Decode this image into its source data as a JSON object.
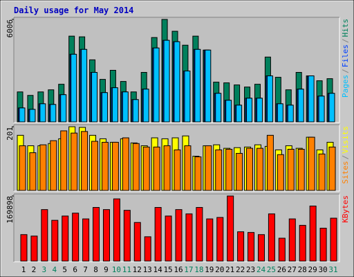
{
  "chart_data": [
    {
      "type": "bar",
      "title": "Daily usage for May 2014",
      "title_color": "#0000c0",
      "legend_separator": "/",
      "ylim": [
        0,
        6006
      ],
      "yticks": [
        6006
      ],
      "series": [
        {
          "name": "Hits",
          "color": "#00805c",
          "values": [
            1757,
            1553,
            1757,
            1880,
            2206,
            5026,
            4985,
            3637,
            2492,
            3024,
            2370,
            1757,
            2901,
            4944,
            6006,
            5312,
            4495,
            5026,
            4209,
            2329,
            2288,
            2166,
            2043,
            2206,
            3800,
            2615,
            1880,
            2901,
            2697,
            2411,
            2533
          ]
        },
        {
          "name": "Files",
          "color": "#0040ff",
          "values": [
            817,
            735,
            1062,
            1021,
            1594,
            3963,
            4249,
            2901,
            1716,
            2002,
            1757,
            1307,
            1920,
            4331,
            4781,
            4699,
            2983,
            4249,
            4209,
            1675,
            1267,
            981,
            1389,
            1389,
            2697,
            1062,
            981,
            1920,
            2697,
            1512,
            1675
          ]
        },
        {
          "name": "Pages",
          "color": "#00c0ff",
          "values": [
            817,
            735,
            1062,
            1021,
            1594,
            3963,
            4249,
            2901,
            1716,
            2002,
            1757,
            1307,
            1920,
            4331,
            4781,
            4699,
            2983,
            4249,
            4209,
            1675,
            1267,
            981,
            1389,
            1389,
            2697,
            1062,
            981,
            1920,
            2697,
            1512,
            1675
          ]
        }
      ]
    },
    {
      "type": "bar",
      "ylim": [
        0,
        201
      ],
      "yticks": [
        201
      ],
      "series": [
        {
          "name": "Visits",
          "color": "#ffff00",
          "values": [
            174,
            141,
            141,
            148,
            163,
            201,
            199,
            174,
            163,
            152,
            163,
            150,
            141,
            166,
            163,
            166,
            172,
            108,
            141,
            144,
            133,
            135,
            137,
            144,
            139,
            128,
            141,
            133,
            168,
            128,
            152
          ]
        },
        {
          "name": "Sites",
          "color": "#ff8000",
          "values": [
            141,
            119,
            144,
            157,
            188,
            181,
            186,
            155,
            152,
            152,
            166,
            148,
            137,
            137,
            141,
            128,
            141,
            106,
            141,
            128,
            130,
            117,
            133,
            133,
            174,
            113,
            130,
            130,
            168,
            115,
            137
          ]
        }
      ]
    },
    {
      "type": "bar",
      "ylim": [
        0,
        169898
      ],
      "yticks": [
        169898
      ],
      "series": [
        {
          "name": "KBytes",
          "color": "#ff0000",
          "values": [
            69100,
            65300,
            134400,
            106400,
            117600,
            125100,
            110100,
            140000,
            134400,
            162400,
            132500,
            100800,
            63500,
            140000,
            117600,
            134400,
            123200,
            140000,
            110100,
            113900,
            169898,
            76500,
            74700,
            69100,
            123200,
            59700,
            110100,
            93300,
            143700,
            85900,
            112000
          ]
        }
      ],
      "categories": [
        "1",
        "2",
        "3",
        "4",
        "5",
        "6",
        "7",
        "8",
        "9",
        "10",
        "11",
        "12",
        "13",
        "14",
        "15",
        "16",
        "17",
        "18",
        "19",
        "20",
        "21",
        "22",
        "23",
        "24",
        "25",
        "26",
        "27",
        "28",
        "29",
        "30",
        "31"
      ],
      "category_colors": [
        "#000000",
        "#000000",
        "#00805c",
        "#00805c",
        "#000000",
        "#000000",
        "#000000",
        "#000000",
        "#000000",
        "#00805c",
        "#00805c",
        "#000000",
        "#000000",
        "#000000",
        "#000000",
        "#000000",
        "#00805c",
        "#00805c",
        "#000000",
        "#000000",
        "#000000",
        "#000000",
        "#000000",
        "#00805c",
        "#00805c",
        "#000000",
        "#000000",
        "#000000",
        "#000000",
        "#000000",
        "#00805c"
      ]
    }
  ]
}
